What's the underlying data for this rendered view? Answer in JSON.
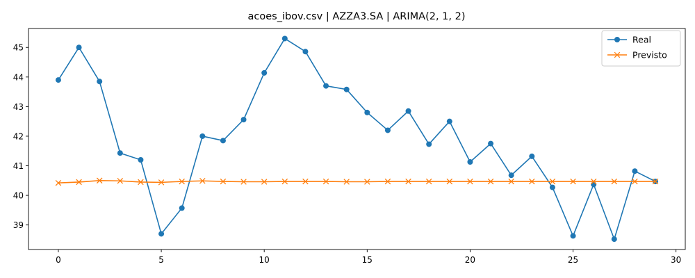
{
  "chart_data": {
    "type": "line",
    "title": "acoes_ibov.csv | AZZA3.SA | ARIMA(2, 1, 2)",
    "xlabel": "",
    "ylabel": "",
    "xlim": [
      -1.45,
      30.45
    ],
    "ylim": [
      38.17,
      45.64
    ],
    "x_ticks": [
      0,
      5,
      10,
      15,
      20,
      25,
      30
    ],
    "y_ticks": [
      39,
      40,
      41,
      42,
      43,
      44,
      45
    ],
    "grid": false,
    "legend_position": "top-right",
    "x": [
      0,
      1,
      2,
      3,
      4,
      5,
      6,
      7,
      8,
      9,
      10,
      11,
      12,
      13,
      14,
      15,
      16,
      17,
      18,
      19,
      20,
      21,
      22,
      23,
      24,
      25,
      26,
      27,
      28,
      29
    ],
    "series": [
      {
        "name": "Real",
        "color": "#1f77b4",
        "marker": "circle",
        "values": [
          43.9,
          45.0,
          43.85,
          41.43,
          41.2,
          38.7,
          39.57,
          42.0,
          41.85,
          42.56,
          44.14,
          45.3,
          44.86,
          43.7,
          43.58,
          42.8,
          42.2,
          42.85,
          41.73,
          42.5,
          41.13,
          41.75,
          40.68,
          41.32,
          40.27,
          38.63,
          40.37,
          38.52,
          40.82,
          40.47
        ]
      },
      {
        "name": "Previsto",
        "color": "#ff7f0e",
        "marker": "x",
        "values": [
          40.42,
          40.45,
          40.5,
          40.49,
          40.45,
          40.44,
          40.47,
          40.49,
          40.47,
          40.46,
          40.46,
          40.47,
          40.47,
          40.47,
          40.46,
          40.46,
          40.47,
          40.47,
          40.47,
          40.47,
          40.47,
          40.47,
          40.47,
          40.47,
          40.47,
          40.47,
          40.47,
          40.47,
          40.47,
          40.47
        ]
      }
    ]
  }
}
